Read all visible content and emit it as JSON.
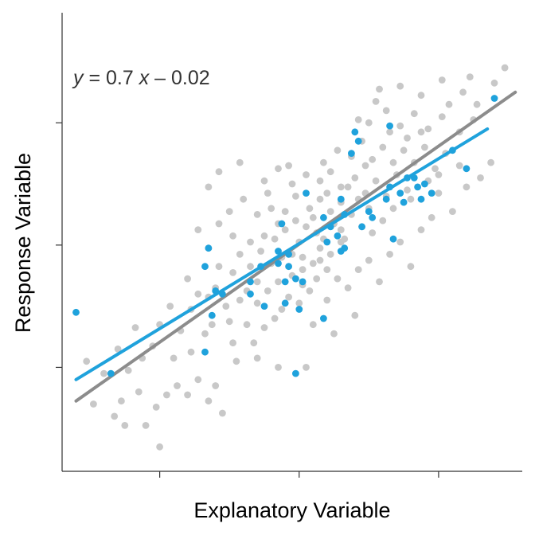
{
  "chart_data": {
    "type": "scatter",
    "title": "",
    "xlabel": "Explanatory Variable",
    "ylabel": "Response Variable",
    "equation": {
      "y_symbol": "y",
      "equals": " = 0.7 ",
      "x_symbol": "x",
      "rest": " – 0.02"
    },
    "xlim": [
      -3.4,
      3.2
    ],
    "ylim": [
      -3.7,
      3.8
    ],
    "x_ticks": [
      -2,
      0,
      2
    ],
    "y_ticks": [
      -2,
      0,
      2
    ],
    "grid": false,
    "colors": {
      "background_points": "#c8c8c8",
      "highlight_points": "#1fa2dc",
      "background_line": "#8c8c8c",
      "highlight_line": "#1fa2dc"
    },
    "lines": {
      "all_data": {
        "x": [
          -3.2,
          3.1
        ],
        "y": [
          -2.55,
          2.5
        ]
      },
      "highlighted": {
        "x": [
          -3.2,
          2.7
        ],
        "y": [
          -2.2,
          1.9
        ]
      }
    },
    "series": [
      {
        "role": "background",
        "points": [
          [
            -2.65,
            -2.8
          ],
          [
            -2.55,
            -2.55
          ],
          [
            -2.3,
            -2.4
          ],
          [
            -2.45,
            -2.05
          ],
          [
            -2.2,
            -2.95
          ],
          [
            -2.25,
            -1.85
          ],
          [
            -2.05,
            -2.65
          ],
          [
            -1.9,
            -2.45
          ],
          [
            -1.8,
            -1.85
          ],
          [
            -1.75,
            -2.3
          ],
          [
            -1.55,
            -1.75
          ],
          [
            -1.45,
            -2.2
          ],
          [
            -1.2,
            -2.3
          ],
          [
            -1.35,
            -1.45
          ],
          [
            -1.55,
            -1.05
          ],
          [
            -1.25,
            -1.3
          ],
          [
            -1.0,
            -1.25
          ],
          [
            -0.95,
            -1.6
          ],
          [
            -1.3,
            -0.85
          ],
          [
            -1.05,
            -1.0
          ],
          [
            -0.85,
            -0.9
          ],
          [
            -0.75,
            -1.3
          ],
          [
            -0.65,
            -1.6
          ],
          [
            -0.6,
            -0.95
          ],
          [
            -0.5,
            -1.35
          ],
          [
            -0.45,
            -0.75
          ],
          [
            -0.35,
            -1.2
          ],
          [
            -0.3,
            -0.6
          ],
          [
            -0.25,
            -1.05
          ],
          [
            -0.15,
            -0.85
          ],
          [
            -0.1,
            -0.5
          ],
          [
            0.0,
            -0.95
          ],
          [
            0.05,
            -0.4
          ],
          [
            0.15,
            -0.75
          ],
          [
            -0.95,
            -0.45
          ],
          [
            -0.85,
            -0.15
          ],
          [
            -0.7,
            -0.35
          ],
          [
            -0.55,
            -0.1
          ],
          [
            -0.4,
            -0.3
          ],
          [
            -0.25,
            -0.2
          ],
          [
            -0.1,
            -0.15
          ],
          [
            0.05,
            -0.2
          ],
          [
            0.2,
            -0.3
          ],
          [
            0.3,
            -0.05
          ],
          [
            0.4,
            -0.4
          ],
          [
            -0.7,
            0.05
          ],
          [
            -0.5,
            0.15
          ],
          [
            -0.35,
            0.1
          ],
          [
            -0.2,
            0.25
          ],
          [
            0.0,
            0.05
          ],
          [
            0.1,
            0.3
          ],
          [
            0.25,
            0.2
          ],
          [
            0.35,
            0.1
          ],
          [
            0.5,
            0.35
          ],
          [
            0.6,
            0.05
          ],
          [
            -1.0,
            0.55
          ],
          [
            -0.8,
            0.75
          ],
          [
            -0.6,
            0.5
          ],
          [
            -0.4,
            0.6
          ],
          [
            -0.2,
            0.55
          ],
          [
            -0.05,
            0.8
          ],
          [
            0.15,
            0.6
          ],
          [
            0.3,
            0.75
          ],
          [
            0.45,
            0.55
          ],
          [
            0.6,
            0.7
          ],
          [
            0.75,
            0.5
          ],
          [
            0.9,
            0.3
          ],
          [
            1.0,
            0.6
          ],
          [
            -0.5,
            1.05
          ],
          [
            -0.3,
            1.25
          ],
          [
            -0.1,
            1.0
          ],
          [
            0.1,
            1.15
          ],
          [
            0.3,
            1.05
          ],
          [
            0.45,
            1.2
          ],
          [
            0.6,
            0.95
          ],
          [
            0.8,
            1.1
          ],
          [
            0.95,
            0.85
          ],
          [
            1.1,
            1.05
          ],
          [
            1.25,
            0.8
          ],
          [
            1.4,
            1.15
          ],
          [
            1.55,
            0.9
          ],
          [
            0.55,
            1.55
          ],
          [
            0.75,
            1.45
          ],
          [
            0.9,
            1.7
          ],
          [
            1.05,
            1.4
          ],
          [
            1.2,
            1.6
          ],
          [
            1.35,
            1.35
          ],
          [
            1.5,
            1.55
          ],
          [
            1.65,
            1.35
          ],
          [
            1.8,
            1.6
          ],
          [
            1.95,
            1.25
          ],
          [
            2.1,
            1.5
          ],
          [
            1.0,
            2.0
          ],
          [
            1.25,
            2.2
          ],
          [
            1.45,
            1.95
          ],
          [
            1.65,
            2.15
          ],
          [
            1.85,
            1.9
          ],
          [
            2.05,
            2.1
          ],
          [
            2.3,
            1.85
          ],
          [
            2.5,
            2.05
          ],
          [
            1.15,
            2.55
          ],
          [
            1.45,
            2.6
          ],
          [
            1.75,
            2.45
          ],
          [
            2.05,
            2.7
          ],
          [
            2.35,
            2.5
          ],
          [
            2.55,
            2.3
          ],
          [
            2.8,
            2.65
          ],
          [
            2.95,
            2.9
          ],
          [
            -1.3,
            0.95
          ],
          [
            -1.15,
            1.2
          ],
          [
            -0.85,
            1.35
          ],
          [
            -1.45,
            0.25
          ],
          [
            -1.3,
            -0.05
          ],
          [
            -1.15,
            0.35
          ],
          [
            -1.6,
            -0.55
          ],
          [
            -1.45,
            -0.8
          ],
          [
            -1.7,
            -1.4
          ],
          [
            -1.85,
            -1.0
          ],
          [
            -2.0,
            -1.3
          ],
          [
            -2.1,
            -1.65
          ],
          [
            -2.35,
            -1.35
          ],
          [
            -2.6,
            -1.7
          ],
          [
            -2.8,
            -2.1
          ],
          [
            -2.95,
            -2.6
          ],
          [
            -3.05,
            -1.9
          ],
          [
            0.2,
            -1.3
          ],
          [
            0.4,
            -0.9
          ],
          [
            0.55,
            -0.55
          ],
          [
            0.7,
            -0.7
          ],
          [
            0.85,
            -0.4
          ],
          [
            1.0,
            -0.25
          ],
          [
            1.15,
            -0.6
          ],
          [
            1.3,
            -0.15
          ],
          [
            1.45,
            0.05
          ],
          [
            1.6,
            -0.35
          ],
          [
            1.75,
            0.25
          ],
          [
            1.9,
            0.45
          ],
          [
            2.0,
            0.85
          ],
          [
            2.2,
            0.55
          ],
          [
            2.4,
            0.95
          ],
          [
            2.6,
            1.1
          ],
          [
            2.75,
            1.35
          ],
          [
            2.3,
            1.3
          ],
          [
            -0.9,
            -1.9
          ],
          [
            -0.6,
            -1.85
          ],
          [
            -0.3,
            -2.0
          ],
          [
            0.1,
            -2.0
          ],
          [
            0.5,
            -1.45
          ],
          [
            0.8,
            -1.15
          ],
          [
            -1.6,
            -2.45
          ],
          [
            -1.3,
            -2.55
          ],
          [
            -2.5,
            -2.95
          ],
          [
            -2.0,
            -3.3
          ],
          [
            -1.1,
            -2.75
          ],
          [
            0.6,
            0.25
          ],
          [
            0.2,
            0.45
          ],
          [
            -0.05,
            0.4
          ],
          [
            -0.3,
            0.35
          ],
          [
            0.4,
            0.85
          ],
          [
            0.7,
            0.95
          ],
          [
            0.85,
            0.75
          ],
          [
            1.2,
            0.4
          ],
          [
            1.35,
            0.6
          ],
          [
            -0.6,
            -0.6
          ],
          [
            -0.75,
            -0.75
          ],
          [
            0.25,
            -0.55
          ],
          [
            0.45,
            -0.15
          ],
          [
            0.65,
            0.1
          ],
          [
            1.05,
            0.2
          ],
          [
            2.0,
            1.15
          ],
          [
            1.6,
            0.75
          ],
          [
            1.85,
            1.05
          ],
          [
            0.95,
            1.3
          ],
          [
            0.35,
            1.35
          ],
          [
            -0.15,
            1.3
          ],
          [
            -0.45,
            0.85
          ],
          [
            -0.95,
            0.15
          ],
          [
            -1.15,
            -0.35
          ],
          [
            -1.2,
            -0.7
          ],
          [
            0.05,
            -0.65
          ],
          [
            0.3,
            -0.25
          ],
          [
            1.55,
            1.75
          ],
          [
            1.75,
            1.85
          ],
          [
            2.15,
            2.3
          ],
          [
            2.45,
            2.75
          ],
          [
            1.3,
            1.85
          ],
          [
            1.1,
            2.35
          ],
          [
            0.85,
            2.05
          ]
        ]
      },
      {
        "role": "highlighted",
        "points": [
          [
            -3.2,
            -1.1
          ],
          [
            -2.7,
            -2.1
          ],
          [
            -1.35,
            -1.75
          ],
          [
            -1.35,
            -0.35
          ],
          [
            -1.3,
            -0.05
          ],
          [
            -1.25,
            -1.15
          ],
          [
            -1.2,
            -0.75
          ],
          [
            -1.1,
            -0.8
          ],
          [
            -0.7,
            -0.6
          ],
          [
            -0.55,
            -0.35
          ],
          [
            -0.7,
            -0.8
          ],
          [
            -0.5,
            -1.0
          ],
          [
            -0.3,
            -0.3
          ],
          [
            -0.15,
            -0.15
          ],
          [
            -0.3,
            -0.1
          ],
          [
            -0.25,
            0.35
          ],
          [
            -0.2,
            -0.6
          ],
          [
            -0.2,
            -0.95
          ],
          [
            -0.15,
            -0.35
          ],
          [
            -0.05,
            -0.55
          ],
          [
            0.0,
            -1.05
          ],
          [
            0.05,
            -0.6
          ],
          [
            0.1,
            0.85
          ],
          [
            -0.05,
            -2.1
          ],
          [
            0.35,
            -1.2
          ],
          [
            0.4,
            0.05
          ],
          [
            0.45,
            0.3
          ],
          [
            0.55,
            0.15
          ],
          [
            0.65,
            0.5
          ],
          [
            0.6,
            0.75
          ],
          [
            0.35,
            0.45
          ],
          [
            0.65,
            -0.05
          ],
          [
            0.85,
            1.7
          ],
          [
            0.75,
            1.5
          ],
          [
            1.0,
            0.55
          ],
          [
            1.25,
            0.75
          ],
          [
            1.45,
            0.85
          ],
          [
            1.3,
            0.95
          ],
          [
            1.35,
            0.1
          ],
          [
            1.55,
            1.1
          ],
          [
            1.65,
            1.1
          ],
          [
            1.7,
            0.95
          ],
          [
            1.8,
            1.0
          ],
          [
            1.3,
            1.95
          ],
          [
            0.8,
            1.85
          ],
          [
            1.05,
            0.45
          ],
          [
            0.6,
            -0.1
          ],
          [
            1.75,
            0.75
          ],
          [
            2.2,
            1.55
          ],
          [
            2.8,
            2.4
          ],
          [
            2.4,
            1.25
          ],
          [
            1.9,
            0.85
          ],
          [
            1.5,
            0.7
          ],
          [
            0.9,
            0.3
          ]
        ]
      }
    ]
  }
}
